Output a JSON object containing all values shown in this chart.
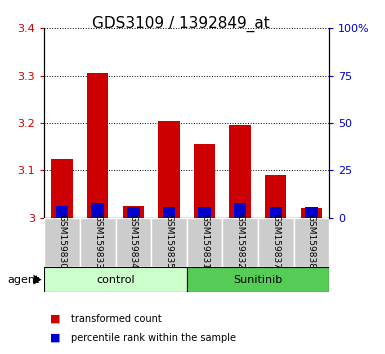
{
  "title": "GDS3109 / 1392849_at",
  "samples": [
    "GSM159830",
    "GSM159833",
    "GSM159834",
    "GSM159835",
    "GSM159831",
    "GSM159832",
    "GSM159837",
    "GSM159838"
  ],
  "red_values": [
    3.125,
    3.305,
    3.025,
    3.205,
    3.155,
    3.195,
    3.09,
    3.02
  ],
  "blue_values": [
    6.0,
    8.0,
    5.5,
    5.5,
    5.5,
    8.0,
    5.5,
    5.5
  ],
  "ylim_left": [
    3.0,
    3.4
  ],
  "ylim_right": [
    0,
    100
  ],
  "yticks_left": [
    3.0,
    3.1,
    3.2,
    3.3,
    3.4
  ],
  "ytick_labels_left": [
    "3",
    "3.1",
    "3.2",
    "3.3",
    "3.4"
  ],
  "yticks_right": [
    0,
    25,
    50,
    75,
    100
  ],
  "ytick_labels_right": [
    "0",
    "25",
    "50",
    "75",
    "100%"
  ],
  "control_group": [
    0,
    1,
    2,
    3
  ],
  "sunitinib_group": [
    4,
    5,
    6,
    7
  ],
  "control_label": "control",
  "sunitinib_label": "Sunitinib",
  "agent_label": "agent",
  "legend_red": "transformed count",
  "legend_blue": "percentile rank within the sample",
  "bar_width": 0.6,
  "blue_bar_width": 0.35,
  "red_color": "#cc0000",
  "blue_color": "#0000cc",
  "control_bg_light": "#ccffcc",
  "control_bg_dark": "#55cc55",
  "tick_color_left": "#cc0000",
  "tick_color_right": "#0000cc",
  "title_fontsize": 11,
  "tick_fontsize": 8,
  "label_fontsize": 8,
  "grid_color": "#000000",
  "sample_bg": "#cccccc"
}
